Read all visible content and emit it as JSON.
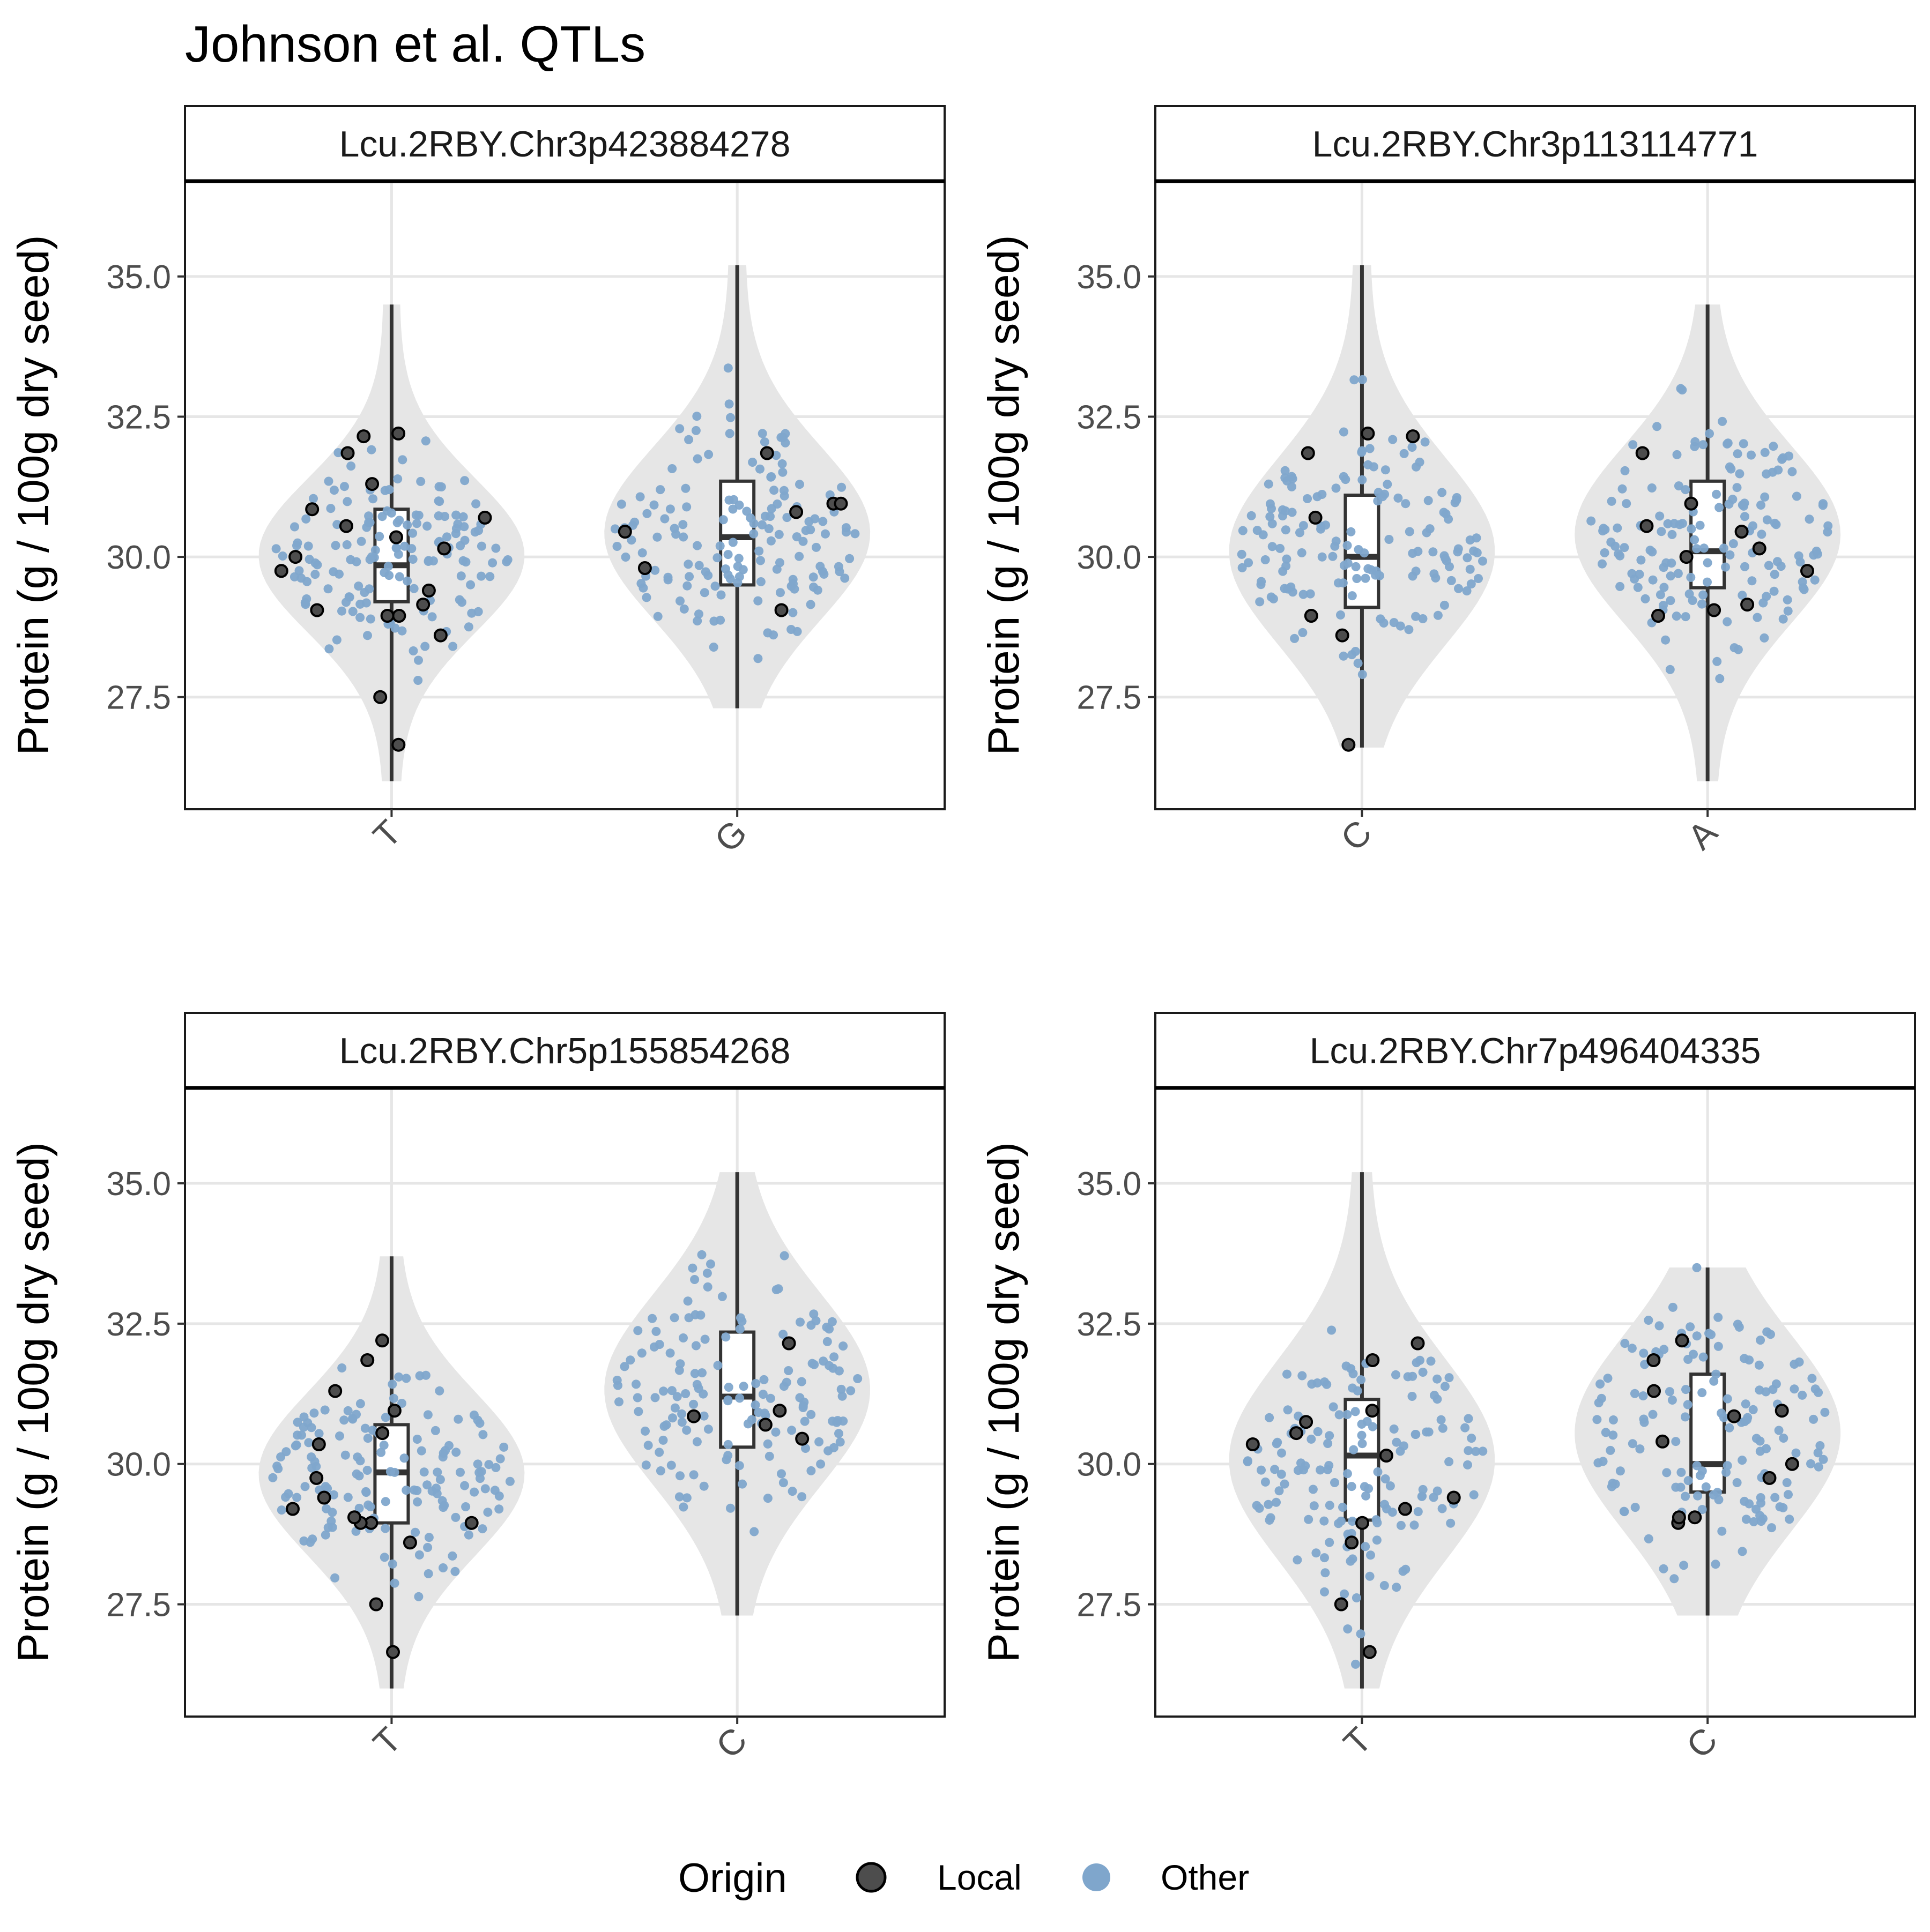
{
  "title": "Johnson et al. QTLs",
  "legend": {
    "title": "Origin",
    "position": "bottom",
    "items": [
      {
        "label": "Local",
        "color": "#333333",
        "fill": "#4d4d4d"
      },
      {
        "label": "Other",
        "color": "#7fa6cc",
        "fill": "#7fa6cc"
      }
    ]
  },
  "colors": {
    "local_point": "#4d4d4d",
    "other_point": "#7fa6cc",
    "violin_fill": "#e6e6e6",
    "grid": "#e6e6e6",
    "frame": "#1a1a1a"
  },
  "chart_data": [
    {
      "type": "violin",
      "strip_label": "Lcu.2RBY.Chr3p423884278",
      "ylabel": "Protein (g / 100g dry seed)",
      "yticks": [
        27.5,
        30.0,
        32.5,
        35.0
      ],
      "ylim": [
        25.5,
        36.7
      ],
      "grid": true,
      "categories": [
        {
          "label": "T",
          "min": 26.0,
          "q1": 29.2,
          "median": 29.85,
          "q3": 30.85,
          "max": 34.5,
          "local_points": [
            29.75,
            30.35,
            30.85,
            31.3,
            31.85,
            32.15,
            32.2,
            30.7,
            30.15,
            30.55,
            29.15,
            29.05,
            28.95,
            28.6,
            27.5,
            26.65,
            29.4,
            30.0,
            28.95
          ]
        },
        {
          "label": "G",
          "min": 27.3,
          "q1": 29.5,
          "median": 30.35,
          "q3": 31.35,
          "max": 35.2,
          "local_points": [
            30.95,
            31.85,
            30.8,
            30.95,
            29.05,
            29.8,
            30.45
          ]
        }
      ]
    },
    {
      "type": "violin",
      "strip_label": "Lcu.2RBY.Chr3p113114771",
      "ylabel": "Protein (g / 100g dry seed)",
      "yticks": [
        27.5,
        30.0,
        32.5,
        35.0
      ],
      "ylim": [
        25.5,
        36.7
      ],
      "grid": true,
      "categories": [
        {
          "label": "C",
          "min": 26.6,
          "q1": 29.1,
          "median": 30.0,
          "q3": 31.1,
          "max": 35.2,
          "local_points": [
            32.15,
            32.2,
            31.85,
            30.7,
            28.95,
            28.6,
            26.65
          ]
        },
        {
          "label": "A",
          "min": 26.0,
          "q1": 29.45,
          "median": 30.1,
          "q3": 31.35,
          "max": 34.5,
          "local_points": [
            31.85,
            30.55,
            30.95,
            30.45,
            30.15,
            30.0,
            29.75,
            29.15,
            29.05,
            28.95
          ]
        }
      ]
    },
    {
      "type": "violin",
      "strip_label": "Lcu.2RBY.Chr5p155854268",
      "ylabel": "Protein (g / 100g dry seed)",
      "yticks": [
        27.5,
        30.0,
        32.5,
        35.0
      ],
      "ylim": [
        25.5,
        36.7
      ],
      "grid": true,
      "categories": [
        {
          "label": "T",
          "min": 26.0,
          "q1": 28.95,
          "median": 29.85,
          "q3": 30.7,
          "max": 33.7,
          "local_points": [
            32.2,
            31.85,
            31.3,
            30.95,
            30.55,
            30.35,
            29.75,
            29.4,
            29.2,
            28.95,
            28.95,
            29.05,
            28.6,
            28.95,
            27.5,
            26.65
          ]
        },
        {
          "label": "C",
          "min": 27.3,
          "q1": 30.3,
          "median": 31.2,
          "q3": 32.35,
          "max": 35.2,
          "local_points": [
            32.15,
            30.85,
            30.95,
            30.7,
            30.45
          ]
        }
      ]
    },
    {
      "type": "violin",
      "strip_label": "Lcu.2RBY.Chr7p496404335",
      "ylabel": "Protein (g / 100g dry seed)",
      "yticks": [
        27.5,
        30.0,
        32.5,
        35.0
      ],
      "ylim": [
        25.5,
        36.7
      ],
      "grid": true,
      "categories": [
        {
          "label": "T",
          "min": 26.0,
          "q1": 29.0,
          "median": 30.15,
          "q3": 31.15,
          "max": 35.2,
          "local_points": [
            30.95,
            30.15,
            30.75,
            32.15,
            31.85,
            30.55,
            30.35,
            29.4,
            29.2,
            28.95,
            28.6,
            27.5,
            26.65
          ]
        },
        {
          "label": "C",
          "min": 27.3,
          "q1": 29.5,
          "median": 30.0,
          "q3": 31.6,
          "max": 33.5,
          "local_points": [
            31.85,
            32.2,
            31.3,
            30.95,
            30.85,
            30.4,
            30.0,
            29.75,
            29.05,
            28.95,
            29.05
          ]
        }
      ]
    }
  ]
}
